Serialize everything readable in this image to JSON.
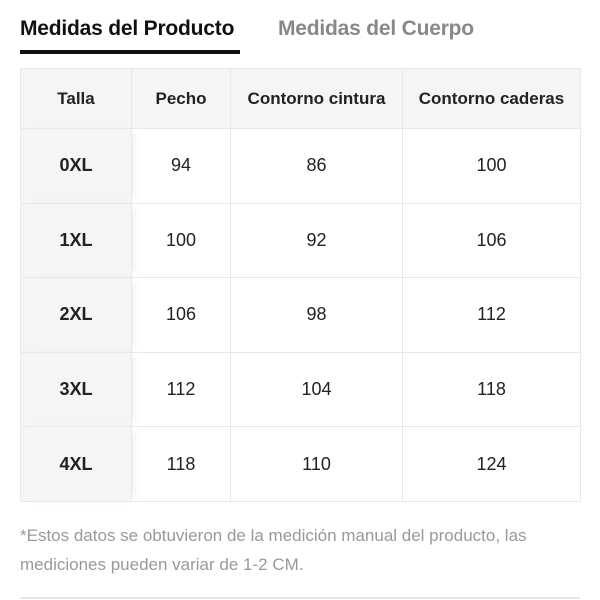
{
  "tabs": [
    {
      "label": "Medidas del Producto",
      "active": true
    },
    {
      "label": "Medidas del Cuerpo",
      "active": false
    }
  ],
  "table": {
    "headers": [
      "Talla",
      "Pecho",
      "Contorno cintura",
      "Contorno caderas"
    ],
    "rows": [
      [
        "0XL",
        "94",
        "86",
        "100"
      ],
      [
        "1XL",
        "100",
        "92",
        "106"
      ],
      [
        "2XL",
        "106",
        "98",
        "112"
      ],
      [
        "3XL",
        "112",
        "104",
        "118"
      ],
      [
        "4XL",
        "118",
        "110",
        "124"
      ]
    ]
  },
  "note": "*Estos datos se obtuvieron de la medición manual del producto, las mediciones pueden variar de 1-2 CM."
}
